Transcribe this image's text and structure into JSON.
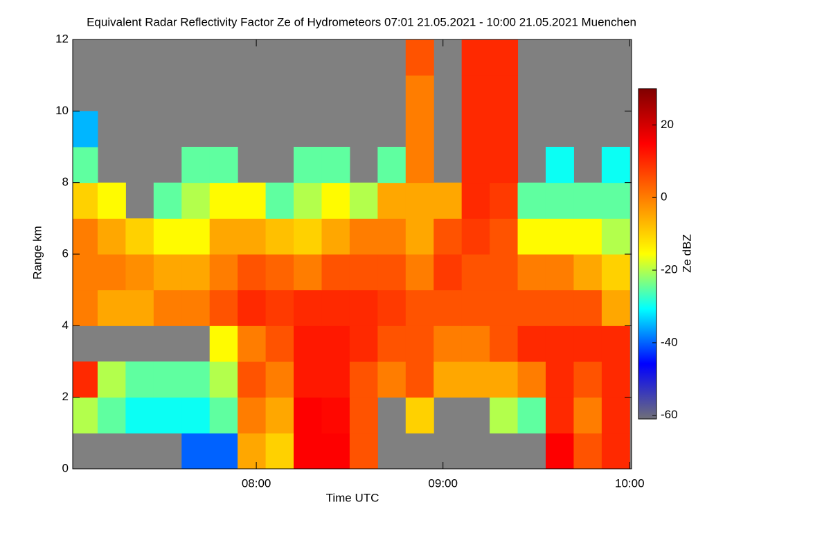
{
  "chart_data": {
    "type": "heatmap",
    "title": "Equivalent Radar Reflectivity Factor Ze of Hydrometeors   07:01 21.05.2021 - 10:00 21.05.2021 Muenchen",
    "x_label": "Time UTC",
    "y_label": "Range km",
    "colorbar_label": "Ze dBZ",
    "xlim": [
      7.0167,
      10.01
    ],
    "xticks": [
      {
        "value": 8,
        "label": "08:00"
      },
      {
        "value": 9,
        "label": "09:00"
      },
      {
        "value": 10,
        "label": "10:00"
      }
    ],
    "ylim": [
      0,
      12
    ],
    "yticks": [
      0,
      2,
      4,
      6,
      8,
      10,
      12
    ],
    "zlim": [
      -61,
      30
    ],
    "zticks": [
      -60,
      -40,
      -20,
      0,
      20
    ],
    "colorscale": [
      "#707078",
      "#0000ff",
      "#00ffff",
      "#ffff00",
      "#ff8000",
      "#ff0000",
      "#800000"
    ],
    "background": "#808080",
    "xbins": [
      7.0167,
      7.15,
      7.3,
      7.45,
      7.6,
      7.75,
      7.9,
      8.05,
      8.2,
      8.35,
      8.5,
      8.65,
      8.8,
      8.95,
      9.1,
      9.25,
      9.4,
      9.55,
      9.7,
      9.85,
      10.0
    ],
    "ybins": [
      0,
      1,
      2,
      3,
      4,
      5,
      6,
      7,
      8,
      9,
      10,
      11,
      12
    ],
    "z": [
      [
        null,
        null,
        null,
        null,
        -40,
        -40,
        -5,
        -10,
        15,
        15,
        5,
        null,
        null,
        null,
        null,
        null,
        null,
        15,
        5,
        10
      ],
      [
        -20,
        -25,
        -30,
        -30,
        -30,
        -25,
        0,
        -5,
        15,
        14,
        5,
        null,
        -10,
        null,
        null,
        -20,
        -25,
        10,
        0,
        10
      ],
      [
        10,
        -20,
        -25,
        -25,
        -25,
        -20,
        5,
        0,
        12,
        12,
        5,
        0,
        5,
        -5,
        -5,
        -5,
        0,
        10,
        5,
        10
      ],
      [
        null,
        null,
        null,
        null,
        null,
        -15,
        0,
        5,
        12,
        12,
        10,
        5,
        5,
        0,
        0,
        5,
        10,
        10,
        10,
        10
      ],
      [
        0,
        -5,
        -5,
        0,
        0,
        5,
        10,
        8,
        10,
        10,
        10,
        8,
        5,
        5,
        5,
        5,
        5,
        5,
        5,
        -5
      ],
      [
        0,
        0,
        -2,
        -5,
        -5,
        0,
        5,
        3,
        0,
        5,
        5,
        5,
        0,
        8,
        5,
        5,
        0,
        0,
        -5,
        -10
      ],
      [
        0,
        -5,
        -10,
        -15,
        -15,
        -5,
        -5,
        -8,
        -10,
        -5,
        0,
        0,
        -5,
        5,
        8,
        5,
        -15,
        -15,
        -15,
        -20
      ],
      [
        -10,
        -15,
        null,
        -25,
        -20,
        -15,
        -15,
        -25,
        -20,
        -15,
        -20,
        -5,
        -5,
        -5,
        10,
        8,
        -25,
        -25,
        -25,
        -25
      ],
      [
        -25,
        null,
        null,
        null,
        -25,
        -25,
        null,
        null,
        -25,
        -25,
        null,
        -25,
        0,
        null,
        10,
        10,
        null,
        -30,
        null,
        -30
      ],
      [
        -35,
        null,
        null,
        null,
        null,
        null,
        null,
        null,
        null,
        null,
        null,
        null,
        0,
        null,
        10,
        10,
        null,
        null,
        null,
        null
      ],
      [
        null,
        null,
        null,
        null,
        null,
        null,
        null,
        null,
        null,
        null,
        null,
        null,
        0,
        null,
        10,
        10,
        null,
        null,
        null,
        null
      ],
      [
        null,
        null,
        null,
        null,
        null,
        null,
        null,
        null,
        null,
        null,
        null,
        null,
        5,
        null,
        10,
        10,
        null,
        null,
        null,
        null
      ]
    ]
  }
}
